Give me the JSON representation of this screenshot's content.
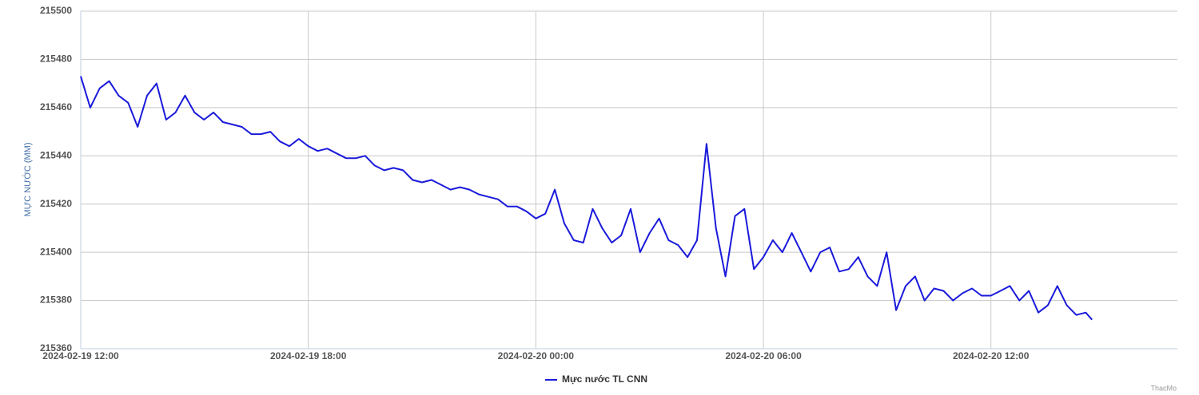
{
  "chart_data": {
    "type": "line",
    "y_axis_label": "MỰC NƯỚC (MM)",
    "credit": "ThacMo",
    "x": [
      "2024-02-19 12:00",
      "2024-02-19 12:15",
      "2024-02-19 12:30",
      "2024-02-19 12:45",
      "2024-02-19 13:00",
      "2024-02-19 13:15",
      "2024-02-19 13:30",
      "2024-02-19 13:45",
      "2024-02-19 14:00",
      "2024-02-19 14:15",
      "2024-02-19 14:30",
      "2024-02-19 14:45",
      "2024-02-19 15:00",
      "2024-02-19 15:15",
      "2024-02-19 15:30",
      "2024-02-19 15:45",
      "2024-02-19 16:00",
      "2024-02-19 16:15",
      "2024-02-19 16:30",
      "2024-02-19 16:45",
      "2024-02-19 17:00",
      "2024-02-19 17:15",
      "2024-02-19 17:30",
      "2024-02-19 17:45",
      "2024-02-19 18:00",
      "2024-02-19 18:15",
      "2024-02-19 18:30",
      "2024-02-19 18:45",
      "2024-02-19 19:00",
      "2024-02-19 19:15",
      "2024-02-19 19:30",
      "2024-02-19 19:45",
      "2024-02-19 20:00",
      "2024-02-19 20:15",
      "2024-02-19 20:30",
      "2024-02-19 20:45",
      "2024-02-19 21:00",
      "2024-02-19 21:15",
      "2024-02-19 21:30",
      "2024-02-19 21:45",
      "2024-02-19 22:00",
      "2024-02-19 22:15",
      "2024-02-19 22:30",
      "2024-02-19 22:45",
      "2024-02-19 23:00",
      "2024-02-19 23:15",
      "2024-02-19 23:30",
      "2024-02-19 23:45",
      "2024-02-20 00:00",
      "2024-02-20 00:15",
      "2024-02-20 00:30",
      "2024-02-20 00:45",
      "2024-02-20 01:00",
      "2024-02-20 01:15",
      "2024-02-20 01:30",
      "2024-02-20 01:45",
      "2024-02-20 02:00",
      "2024-02-20 02:15",
      "2024-02-20 02:30",
      "2024-02-20 02:45",
      "2024-02-20 03:00",
      "2024-02-20 03:15",
      "2024-02-20 03:30",
      "2024-02-20 03:45",
      "2024-02-20 04:00",
      "2024-02-20 04:15",
      "2024-02-20 04:30",
      "2024-02-20 04:45",
      "2024-02-20 05:00",
      "2024-02-20 05:15",
      "2024-02-20 05:30",
      "2024-02-20 05:45",
      "2024-02-20 06:00",
      "2024-02-20 06:15",
      "2024-02-20 06:30",
      "2024-02-20 06:45",
      "2024-02-20 07:00",
      "2024-02-20 07:15",
      "2024-02-20 07:30",
      "2024-02-20 07:45",
      "2024-02-20 08:00",
      "2024-02-20 08:15",
      "2024-02-20 08:30",
      "2024-02-20 08:45",
      "2024-02-20 09:00",
      "2024-02-20 09:15",
      "2024-02-20 09:30",
      "2024-02-20 09:45",
      "2024-02-20 10:00",
      "2024-02-20 10:15",
      "2024-02-20 10:30",
      "2024-02-20 10:45",
      "2024-02-20 11:00",
      "2024-02-20 11:15",
      "2024-02-20 11:30",
      "2024-02-20 11:45",
      "2024-02-20 12:00",
      "2024-02-20 12:15",
      "2024-02-20 12:30",
      "2024-02-20 12:45",
      "2024-02-20 13:00",
      "2024-02-20 13:15",
      "2024-02-20 13:30",
      "2024-02-20 13:45",
      "2024-02-20 14:00",
      "2024-02-20 14:15",
      "2024-02-20 14:30",
      "2024-02-20 14:40"
    ],
    "series": [
      {
        "name": "Mực nước TL CNN",
        "color": "#1a1adb",
        "values": [
          215473,
          215460,
          215468,
          215471,
          215465,
          215462,
          215452,
          215465,
          215470,
          215455,
          215458,
          215465,
          215458,
          215455,
          215458,
          215454,
          215453,
          215452,
          215449,
          215449,
          215450,
          215446,
          215444,
          215447,
          215444,
          215442,
          215443,
          215441,
          215439,
          215439,
          215440,
          215436,
          215434,
          215435,
          215434,
          215430,
          215429,
          215430,
          215428,
          215426,
          215427,
          215426,
          215424,
          215423,
          215422,
          215419,
          215419,
          215417,
          215414,
          215416,
          215426,
          215412,
          215405,
          215404,
          215418,
          215410,
          215404,
          215407,
          215418,
          215400,
          215408,
          215414,
          215405,
          215403,
          215398,
          215405,
          215445,
          215410,
          215390,
          215415,
          215418,
          215393,
          215398,
          215405,
          215400,
          215408,
          215400,
          215392,
          215400,
          215402,
          215392,
          215393,
          215398,
          215390,
          215386,
          215400,
          215376,
          215386,
          215390,
          215380,
          215385,
          215384,
          215380,
          215383,
          215385,
          215382,
          215382,
          215384,
          215386,
          215380,
          215384,
          215375,
          215378,
          215386,
          215378,
          215374,
          215375,
          215372
        ]
      }
    ],
    "xlim": [
      "2024-02-19 12:00",
      "2024-02-20 16:55"
    ],
    "xticks": [
      "2024-02-19 12:00",
      "2024-02-19 18:00",
      "2024-02-20 00:00",
      "2024-02-20 06:00",
      "2024-02-20 12:00"
    ],
    "ylim": [
      215360,
      215500
    ],
    "yticks": [
      215360,
      215380,
      215400,
      215420,
      215440,
      215460,
      215480,
      215500
    ],
    "grid": true
  }
}
